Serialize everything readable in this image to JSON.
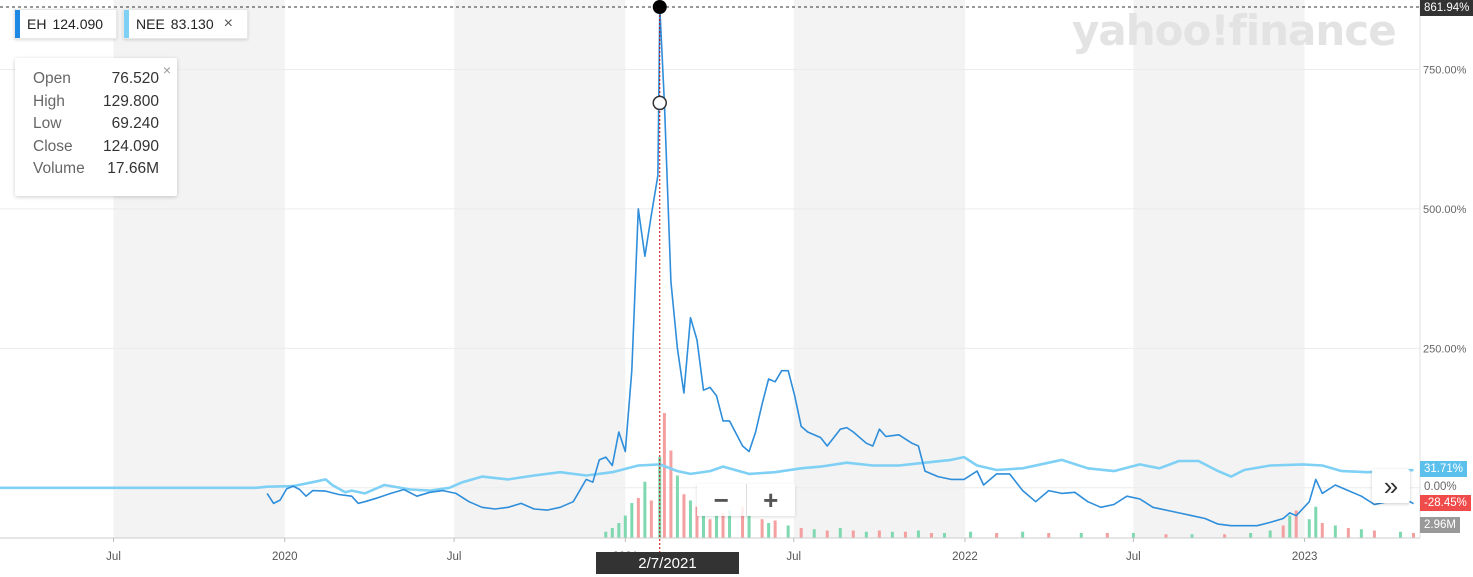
{
  "watermark": "yahoo!finance",
  "tickers": [
    {
      "symbol": "EH",
      "value": "124.090",
      "color": "#1E88E5"
    },
    {
      "symbol": "NEE",
      "value": "83.130",
      "color": "#7FD0F5",
      "close": "×"
    }
  ],
  "ohlc": {
    "close_icon": "×",
    "rows": [
      {
        "label": "Open",
        "value": "76.520"
      },
      {
        "label": "High",
        "value": "129.800"
      },
      {
        "label": "Low",
        "value": "69.240"
      },
      {
        "label": "Close",
        "value": "124.090"
      },
      {
        "label": "Volume",
        "value": "17.66M"
      }
    ]
  },
  "zoom": {
    "minus": "−",
    "plus": "+"
  },
  "expand_icon": "»",
  "crosshair_date": "2/7/2021",
  "tags": {
    "max": "861.94%",
    "nee": "31.71%",
    "zero": "0.00%",
    "eh": "-28.45%",
    "volume": "2.96M"
  },
  "colors": {
    "eh": "#2E8EDB",
    "nee": "#7FD0F5",
    "up": "#7FD9B0",
    "down": "#F5A0A0",
    "crosshair": "#cc0000"
  },
  "chart_data": {
    "type": "line",
    "y_unit": "%",
    "y_ticks": [
      "750.00%",
      "500.00%",
      "250.00%",
      "0.00%"
    ],
    "y_tick_values": [
      750,
      500,
      250,
      0
    ],
    "ylim": [
      -90,
      862
    ],
    "x_ticks": [
      "Jul",
      "2020",
      "Jul",
      "2021",
      "Jul",
      "2022",
      "Jul",
      "2023"
    ],
    "x_tick_dates": [
      "2019-07-01",
      "2020-01-01",
      "2020-07-01",
      "2021-01-01",
      "2021-07-01",
      "2022-01-01",
      "2022-07-01",
      "2023-01-01"
    ],
    "xlim": [
      "2019-03-01",
      "2023-05-05"
    ],
    "shaded_bands": [
      [
        "2019-07-01",
        "2020-01-01"
      ],
      [
        "2020-07-01",
        "2021-01-01"
      ],
      [
        "2021-07-01",
        "2022-01-01"
      ],
      [
        "2022-07-01",
        "2023-01-01"
      ]
    ],
    "legend": "top-left",
    "series": [
      {
        "name": "EH",
        "points": [
          [
            "2019-12-13",
            -10
          ],
          [
            "2019-12-20",
            -28
          ],
          [
            "2019-12-27",
            -22
          ],
          [
            "2020-01-03",
            -2
          ],
          [
            "2020-01-10",
            3
          ],
          [
            "2020-01-17",
            -3
          ],
          [
            "2020-01-24",
            -15
          ],
          [
            "2020-01-31",
            -5
          ],
          [
            "2020-02-14",
            -6
          ],
          [
            "2020-02-28",
            -12
          ],
          [
            "2020-03-13",
            -15
          ],
          [
            "2020-03-20",
            -28
          ],
          [
            "2020-03-27",
            -25
          ],
          [
            "2020-04-10",
            -18
          ],
          [
            "2020-04-24",
            -10
          ],
          [
            "2020-05-08",
            -3
          ],
          [
            "2020-05-22",
            -15
          ],
          [
            "2020-06-05",
            -8
          ],
          [
            "2020-06-19",
            -5
          ],
          [
            "2020-07-03",
            -10
          ],
          [
            "2020-07-17",
            -25
          ],
          [
            "2020-07-31",
            -35
          ],
          [
            "2020-08-14",
            -38
          ],
          [
            "2020-08-28",
            -35
          ],
          [
            "2020-09-11",
            -28
          ],
          [
            "2020-09-25",
            -38
          ],
          [
            "2020-10-09",
            -40
          ],
          [
            "2020-10-23",
            -35
          ],
          [
            "2020-11-06",
            -25
          ],
          [
            "2020-11-13",
            -5
          ],
          [
            "2020-11-20",
            15
          ],
          [
            "2020-11-27",
            10
          ],
          [
            "2020-12-04",
            50
          ],
          [
            "2020-12-11",
            55
          ],
          [
            "2020-12-18",
            40
          ],
          [
            "2020-12-25",
            100
          ],
          [
            "2021-01-01",
            65
          ],
          [
            "2021-01-08",
            210
          ],
          [
            "2021-01-15",
            500
          ],
          [
            "2021-01-22",
            415
          ],
          [
            "2021-01-29",
            490
          ],
          [
            "2021-02-05",
            560
          ],
          [
            "2021-02-07",
            862
          ],
          [
            "2021-02-12",
            690
          ],
          [
            "2021-02-19",
            370
          ],
          [
            "2021-02-26",
            250
          ],
          [
            "2021-03-05",
            170
          ],
          [
            "2021-03-12",
            305
          ],
          [
            "2021-03-19",
            265
          ],
          [
            "2021-03-26",
            175
          ],
          [
            "2021-04-02",
            180
          ],
          [
            "2021-04-09",
            165
          ],
          [
            "2021-04-16",
            120
          ],
          [
            "2021-04-23",
            120
          ],
          [
            "2021-05-07",
            75
          ],
          [
            "2021-05-14",
            65
          ],
          [
            "2021-05-21",
            100
          ],
          [
            "2021-05-28",
            150
          ],
          [
            "2021-06-04",
            195
          ],
          [
            "2021-06-11",
            190
          ],
          [
            "2021-06-18",
            210
          ],
          [
            "2021-06-25",
            210
          ],
          [
            "2021-07-02",
            165
          ],
          [
            "2021-07-09",
            110
          ],
          [
            "2021-07-16",
            100
          ],
          [
            "2021-07-30",
            90
          ],
          [
            "2021-08-06",
            75
          ],
          [
            "2021-08-20",
            105
          ],
          [
            "2021-08-27",
            108
          ],
          [
            "2021-09-03",
            100
          ],
          [
            "2021-09-17",
            80
          ],
          [
            "2021-09-24",
            75
          ],
          [
            "2021-10-01",
            105
          ],
          [
            "2021-10-08",
            92
          ],
          [
            "2021-10-22",
            95
          ],
          [
            "2021-11-05",
            80
          ],
          [
            "2021-11-12",
            75
          ],
          [
            "2021-11-19",
            30
          ],
          [
            "2021-12-03",
            20
          ],
          [
            "2021-12-17",
            15
          ],
          [
            "2021-12-31",
            15
          ],
          [
            "2022-01-14",
            30
          ],
          [
            "2022-01-21",
            5
          ],
          [
            "2022-02-04",
            25
          ],
          [
            "2022-02-18",
            25
          ],
          [
            "2022-03-04",
            -5
          ],
          [
            "2022-03-18",
            -25
          ],
          [
            "2022-04-01",
            -5
          ],
          [
            "2022-04-15",
            -10
          ],
          [
            "2022-04-29",
            -8
          ],
          [
            "2022-05-13",
            -25
          ],
          [
            "2022-05-27",
            -35
          ],
          [
            "2022-06-10",
            -30
          ],
          [
            "2022-06-24",
            -15
          ],
          [
            "2022-07-08",
            -20
          ],
          [
            "2022-07-22",
            -35
          ],
          [
            "2022-08-05",
            -40
          ],
          [
            "2022-08-19",
            -45
          ],
          [
            "2022-09-02",
            -50
          ],
          [
            "2022-09-16",
            -55
          ],
          [
            "2022-09-30",
            -65
          ],
          [
            "2022-10-14",
            -68
          ],
          [
            "2022-10-28",
            -68
          ],
          [
            "2022-11-11",
            -68
          ],
          [
            "2022-11-25",
            -62
          ],
          [
            "2022-12-09",
            -55
          ],
          [
            "2022-12-16",
            -45
          ],
          [
            "2022-12-23",
            -50
          ],
          [
            "2023-01-06",
            -25
          ],
          [
            "2023-01-13",
            15
          ],
          [
            "2023-01-20",
            -10
          ],
          [
            "2023-02-03",
            5
          ],
          [
            "2023-02-17",
            -5
          ],
          [
            "2023-03-03",
            -15
          ],
          [
            "2023-03-17",
            -30
          ],
          [
            "2023-03-31",
            -25
          ],
          [
            "2023-04-14",
            -15
          ],
          [
            "2023-04-28",
            -28.45
          ]
        ]
      },
      {
        "name": "NEE",
        "points": [
          [
            "2019-03-01",
            0
          ],
          [
            "2019-12-01",
            0
          ],
          [
            "2019-12-13",
            2
          ],
          [
            "2020-01-10",
            3
          ],
          [
            "2020-01-31",
            10
          ],
          [
            "2020-02-14",
            15
          ],
          [
            "2020-02-21",
            5
          ],
          [
            "2020-03-06",
            -8
          ],
          [
            "2020-03-13",
            -5
          ],
          [
            "2020-03-27",
            -10
          ],
          [
            "2020-04-17",
            5
          ],
          [
            "2020-05-15",
            -3
          ],
          [
            "2020-06-05",
            -5
          ],
          [
            "2020-06-26",
            0
          ],
          [
            "2020-07-10",
            10
          ],
          [
            "2020-07-31",
            20
          ],
          [
            "2020-08-28",
            15
          ],
          [
            "2020-09-25",
            22
          ],
          [
            "2020-10-23",
            28
          ],
          [
            "2020-11-20",
            22
          ],
          [
            "2020-12-18",
            28
          ],
          [
            "2021-01-15",
            40
          ],
          [
            "2021-02-07",
            42
          ],
          [
            "2021-02-26",
            30
          ],
          [
            "2021-03-12",
            25
          ],
          [
            "2021-04-02",
            30
          ],
          [
            "2021-04-16",
            38
          ],
          [
            "2021-05-14",
            25
          ],
          [
            "2021-06-11",
            28
          ],
          [
            "2021-07-09",
            35
          ],
          [
            "2021-07-30",
            38
          ],
          [
            "2021-08-27",
            45
          ],
          [
            "2021-09-24",
            40
          ],
          [
            "2021-10-22",
            40
          ],
          [
            "2021-11-19",
            45
          ],
          [
            "2021-12-17",
            50
          ],
          [
            "2021-12-31",
            55
          ],
          [
            "2022-01-14",
            40
          ],
          [
            "2022-02-04",
            32
          ],
          [
            "2022-03-04",
            35
          ],
          [
            "2022-04-01",
            45
          ],
          [
            "2022-04-15",
            50
          ],
          [
            "2022-05-13",
            35
          ],
          [
            "2022-06-10",
            30
          ],
          [
            "2022-07-08",
            42
          ],
          [
            "2022-07-29",
            35
          ],
          [
            "2022-08-19",
            48
          ],
          [
            "2022-09-09",
            48
          ],
          [
            "2022-09-30",
            30
          ],
          [
            "2022-10-14",
            20
          ],
          [
            "2022-10-28",
            32
          ],
          [
            "2022-11-25",
            40
          ],
          [
            "2022-12-30",
            42
          ],
          [
            "2023-01-20",
            40
          ],
          [
            "2023-02-10",
            30
          ],
          [
            "2023-03-10",
            28
          ],
          [
            "2023-03-31",
            30
          ],
          [
            "2023-04-28",
            31.71
          ]
        ]
      }
    ],
    "volume": [
      [
        "2020-12-11",
        5,
        "up"
      ],
      [
        "2020-12-18",
        8,
        "up"
      ],
      [
        "2020-12-25",
        12,
        "up"
      ],
      [
        "2021-01-01",
        18,
        "up"
      ],
      [
        "2021-01-08",
        28,
        "up"
      ],
      [
        "2021-01-15",
        32,
        "down"
      ],
      [
        "2021-01-22",
        45,
        "up"
      ],
      [
        "2021-01-29",
        30,
        "down"
      ],
      [
        "2021-02-07",
        65,
        "up"
      ],
      [
        "2021-02-12",
        100,
        "down"
      ],
      [
        "2021-02-19",
        70,
        "down"
      ],
      [
        "2021-02-26",
        50,
        "up"
      ],
      [
        "2021-03-05",
        35,
        "down"
      ],
      [
        "2021-03-12",
        30,
        "up"
      ],
      [
        "2021-03-19",
        25,
        "down"
      ],
      [
        "2021-03-26",
        18,
        "up"
      ],
      [
        "2021-04-02",
        15,
        "down"
      ],
      [
        "2021-04-09",
        18,
        "up"
      ],
      [
        "2021-04-16",
        20,
        "down"
      ],
      [
        "2021-04-23",
        22,
        "up"
      ],
      [
        "2021-05-07",
        25,
        "down"
      ],
      [
        "2021-05-14",
        18,
        "up"
      ],
      [
        "2021-05-28",
        15,
        "down"
      ],
      [
        "2021-06-04",
        12,
        "up"
      ],
      [
        "2021-06-11",
        14,
        "down"
      ],
      [
        "2021-06-25",
        10,
        "up"
      ],
      [
        "2021-07-09",
        8,
        "down"
      ],
      [
        "2021-07-23",
        7,
        "up"
      ],
      [
        "2021-08-06",
        6,
        "down"
      ],
      [
        "2021-08-20",
        8,
        "up"
      ],
      [
        "2021-09-03",
        6,
        "down"
      ],
      [
        "2021-09-17",
        5,
        "up"
      ],
      [
        "2021-10-01",
        6,
        "down"
      ],
      [
        "2021-10-15",
        5,
        "up"
      ],
      [
        "2021-10-29",
        5,
        "down"
      ],
      [
        "2021-11-12",
        6,
        "up"
      ],
      [
        "2021-11-26",
        4,
        "down"
      ],
      [
        "2021-12-10",
        4,
        "up"
      ],
      [
        "2022-01-07",
        5,
        "up"
      ],
      [
        "2022-02-04",
        4,
        "down"
      ],
      [
        "2022-03-04",
        5,
        "up"
      ],
      [
        "2022-04-01",
        4,
        "down"
      ],
      [
        "2022-05-06",
        4,
        "up"
      ],
      [
        "2022-06-03",
        4,
        "down"
      ],
      [
        "2022-07-01",
        4,
        "up"
      ],
      [
        "2022-08-05",
        3,
        "down"
      ],
      [
        "2022-09-02",
        3,
        "up"
      ],
      [
        "2022-10-07",
        3,
        "down"
      ],
      [
        "2022-11-04",
        4,
        "up"
      ],
      [
        "2022-11-25",
        6,
        "up"
      ],
      [
        "2022-12-09",
        10,
        "down"
      ],
      [
        "2022-12-16",
        18,
        "up"
      ],
      [
        "2022-12-23",
        22,
        "down"
      ],
      [
        "2023-01-06",
        15,
        "up"
      ],
      [
        "2023-01-13",
        25,
        "up"
      ],
      [
        "2023-01-20",
        12,
        "down"
      ],
      [
        "2023-02-03",
        10,
        "up"
      ],
      [
        "2023-02-17",
        8,
        "down"
      ],
      [
        "2023-03-03",
        7,
        "up"
      ],
      [
        "2023-03-17",
        6,
        "down"
      ],
      [
        "2023-04-14",
        5,
        "up"
      ],
      [
        "2023-04-28",
        4,
        "down"
      ]
    ],
    "crosshair": {
      "date": "2021-02-07",
      "high": 862,
      "close": 690
    }
  }
}
